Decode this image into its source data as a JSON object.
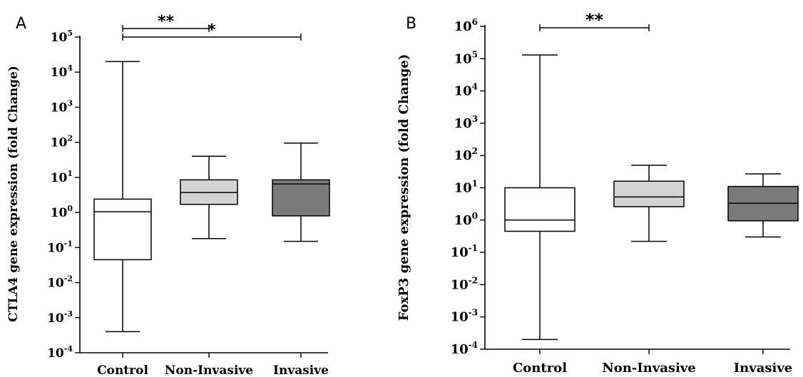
{
  "chart_data": [
    {
      "type": "box",
      "panel_label": "A",
      "ylabel": "CTLA4 gene expression (fold Change)",
      "yscale": "log",
      "ylim": [
        0.0001,
        100000
      ],
      "y_ticks": [
        {
          "value": 0.0001,
          "base": "10",
          "exp": "-4"
        },
        {
          "value": 0.001,
          "base": "10",
          "exp": "-3"
        },
        {
          "value": 0.01,
          "base": "10",
          "exp": "-2"
        },
        {
          "value": 0.1,
          "base": "10",
          "exp": "-1"
        },
        {
          "value": 1,
          "base": "10",
          "exp": "0"
        },
        {
          "value": 10,
          "base": "10",
          "exp": "1"
        },
        {
          "value": 100,
          "base": "10",
          "exp": "2"
        },
        {
          "value": 1000,
          "base": "10",
          "exp": "3"
        },
        {
          "value": 10000,
          "base": "10",
          "exp": "4"
        },
        {
          "value": 100000,
          "base": "10",
          "exp": "5"
        }
      ],
      "categories": [
        "Control",
        "Non-Invasive",
        "Invasive"
      ],
      "boxes": [
        {
          "category": "Control",
          "min": 0.0004,
          "q1": 0.045,
          "median": 1.05,
          "q3": 2.4,
          "max": 20000,
          "color": "#ffffff"
        },
        {
          "category": "Non-Invasive",
          "min": 0.18,
          "q1": 1.7,
          "median": 3.7,
          "q3": 8.5,
          "max": 40,
          "color": "#d4d4d4"
        },
        {
          "category": "Invasive",
          "min": 0.15,
          "q1": 0.8,
          "median": 6.5,
          "q3": 8.5,
          "max": 95,
          "color": "#7a7a7a"
        }
      ],
      "significance": [
        {
          "from": "Control",
          "to": "Non-Invasive",
          "label": "**",
          "y": 180000
        },
        {
          "from": "Control",
          "to": "Invasive",
          "label": "*",
          "y": 100000
        }
      ]
    },
    {
      "type": "box",
      "panel_label": "B",
      "ylabel": "FoxP3 gene expression (fold Change)",
      "yscale": "log",
      "ylim": [
        0.0001,
        1000000
      ],
      "y_ticks": [
        {
          "value": 0.0001,
          "base": "10",
          "exp": "-4"
        },
        {
          "value": 0.001,
          "base": "10",
          "exp": "-3"
        },
        {
          "value": 0.01,
          "base": "10",
          "exp": "-2"
        },
        {
          "value": 0.1,
          "base": "10",
          "exp": "-1"
        },
        {
          "value": 1,
          "base": "10",
          "exp": "0"
        },
        {
          "value": 10,
          "base": "10",
          "exp": "1"
        },
        {
          "value": 100,
          "base": "10",
          "exp": "2"
        },
        {
          "value": 1000,
          "base": "10",
          "exp": "3"
        },
        {
          "value": 10000,
          "base": "10",
          "exp": "4"
        },
        {
          "value": 100000,
          "base": "10",
          "exp": "5"
        },
        {
          "value": 1000000,
          "base": "10",
          "exp": "6"
        }
      ],
      "categories": [
        "Control",
        "Non-Invasive",
        "Invasive"
      ],
      "boxes": [
        {
          "category": "Control",
          "min": 0.0002,
          "q1": 0.45,
          "median": 1.0,
          "q3": 10,
          "max": 130000,
          "color": "#ffffff"
        },
        {
          "category": "Non-Invasive",
          "min": 0.22,
          "q1": 2.6,
          "median": 5.2,
          "q3": 16,
          "max": 50,
          "color": "#d4d4d4"
        },
        {
          "category": "Invasive",
          "min": 0.3,
          "q1": 0.95,
          "median": 3.3,
          "q3": 11,
          "max": 27,
          "color": "#7a7a7a"
        }
      ],
      "significance": [
        {
          "from": "Control",
          "to": "Non-Invasive",
          "label": "**",
          "y": 550000
        }
      ]
    }
  ]
}
